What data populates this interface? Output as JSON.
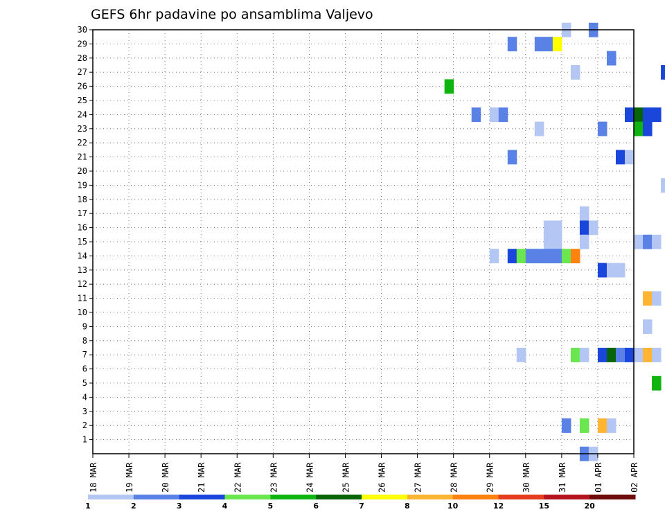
{
  "chart_data": {
    "type": "heatmap",
    "title": "GEFS 6hr padavine po ansamblima Valjevo",
    "x_ticks": [
      "18 MAR",
      "19 MAR",
      "20 MAR",
      "21 MAR",
      "22 MAR",
      "23 MAR",
      "24 MAR",
      "25 MAR",
      "26 MAR",
      "27 MAR",
      "28 MAR",
      "29 MAR",
      "30 MAR",
      "31 MAR",
      "01 APR",
      "02 APR"
    ],
    "y_ticks": [
      "1",
      "2",
      "3",
      "4",
      "5",
      "6",
      "7",
      "8",
      "9",
      "10",
      "11",
      "12",
      "13",
      "14",
      "15",
      "16",
      "17",
      "18",
      "19",
      "20",
      "21",
      "22",
      "23",
      "24",
      "25",
      "26",
      "27",
      "28",
      "29",
      "30"
    ],
    "xlim": [
      "18 MAR 00Z",
      "02 APR 00Z"
    ],
    "ylim": [
      0,
      30
    ],
    "grid": true,
    "colorbar": {
      "labels": [
        "1",
        "2",
        "3",
        "4",
        "5",
        "6",
        "7",
        "8",
        "10",
        "12",
        "15",
        "20"
      ],
      "colors": [
        "#b4c6f4",
        "#5a82e6",
        "#1a46dc",
        "#6ae64e",
        "#10b410",
        "#086408",
        "#ffff00",
        "#ffb432",
        "#ff8210",
        "#e63c1e",
        "#b4141e",
        "#6e0a0a"
      ]
    },
    "cells": [
      {
        "x": "27 MAR 18Z",
        "y": 26,
        "v": 5
      },
      {
        "x": "28 MAR 12Z",
        "y": 24,
        "v": 2
      },
      {
        "x": "29 MAR 00Z",
        "y": 24,
        "v": 1
      },
      {
        "x": "29 MAR 06Z",
        "y": 24,
        "v": 2
      },
      {
        "x": "29 MAR 00Z",
        "y": 14,
        "v": 1
      },
      {
        "x": "29 MAR 12Z",
        "y": 29,
        "v": 2
      },
      {
        "x": "29 MAR 12Z",
        "y": 21,
        "v": 2
      },
      {
        "x": "29 MAR 12Z",
        "y": 14,
        "v": 3
      },
      {
        "x": "29 MAR 18Z",
        "y": 14,
        "v": 4
      },
      {
        "x": "29 MAR 18Z",
        "y": 7,
        "v": 1
      },
      {
        "x": "30 MAR 00Z",
        "y": 14,
        "v": 2
      },
      {
        "x": "30 MAR 06Z",
        "y": 29,
        "v": 2
      },
      {
        "x": "30 MAR 06Z",
        "y": 23,
        "v": 1
      },
      {
        "x": "30 MAR 06Z",
        "y": 14,
        "v": 2
      },
      {
        "x": "30 MAR 12Z",
        "y": 29,
        "v": 2
      },
      {
        "x": "30 MAR 12Z",
        "y": 16,
        "v": 1
      },
      {
        "x": "30 MAR 12Z",
        "y": 15,
        "v": 1
      },
      {
        "x": "30 MAR 12Z",
        "y": 14,
        "v": 2
      },
      {
        "x": "30 MAR 18Z",
        "y": 29,
        "v": 7
      },
      {
        "x": "30 MAR 18Z",
        "y": 16,
        "v": 1
      },
      {
        "x": "30 MAR 18Z",
        "y": 15,
        "v": 1
      },
      {
        "x": "30 MAR 18Z",
        "y": 14,
        "v": 2
      },
      {
        "x": "31 MAR 00Z",
        "y": 30,
        "v": 1
      },
      {
        "x": "31 MAR 00Z",
        "y": 14,
        "v": 4
      },
      {
        "x": "31 MAR 00Z",
        "y": 2,
        "v": 2
      },
      {
        "x": "31 MAR 06Z",
        "y": 27,
        "v": 1
      },
      {
        "x": "31 MAR 06Z",
        "y": 14,
        "v": 9
      },
      {
        "x": "31 MAR 06Z",
        "y": 7,
        "v": 4
      },
      {
        "x": "31 MAR 12Z",
        "y": 17,
        "v": 1
      },
      {
        "x": "31 MAR 12Z",
        "y": 16,
        "v": 3
      },
      {
        "x": "31 MAR 12Z",
        "y": 15,
        "v": 1
      },
      {
        "x": "31 MAR 12Z",
        "y": 7,
        "v": 1
      },
      {
        "x": "31 MAR 12Z",
        "y": 2,
        "v": 4
      },
      {
        "x": "31 MAR 12Z",
        "y": 0,
        "v": 2
      },
      {
        "x": "31 MAR 18Z",
        "y": 30,
        "v": 2
      },
      {
        "x": "31 MAR 18Z",
        "y": 16,
        "v": 1
      },
      {
        "x": "31 MAR 18Z",
        "y": 0,
        "v": 1
      },
      {
        "x": "01 APR 00Z",
        "y": 23,
        "v": 2
      },
      {
        "x": "01 APR 00Z",
        "y": 13,
        "v": 3
      },
      {
        "x": "01 APR 00Z",
        "y": 7,
        "v": 3
      },
      {
        "x": "01 APR 00Z",
        "y": 2,
        "v": 8
      },
      {
        "x": "01 APR 06Z",
        "y": 28,
        "v": 2
      },
      {
        "x": "01 APR 06Z",
        "y": 13,
        "v": 1
      },
      {
        "x": "01 APR 06Z",
        "y": 7,
        "v": 6
      },
      {
        "x": "01 APR 06Z",
        "y": 2,
        "v": 1
      },
      {
        "x": "01 APR 12Z",
        "y": 21,
        "v": 3
      },
      {
        "x": "01 APR 12Z",
        "y": 13,
        "v": 1
      },
      {
        "x": "01 APR 12Z",
        "y": 7,
        "v": 2
      },
      {
        "x": "01 APR 18Z",
        "y": 24,
        "v": 3
      },
      {
        "x": "01 APR 18Z",
        "y": 21,
        "v": 1
      },
      {
        "x": "01 APR 18Z",
        "y": 7,
        "v": 3
      },
      {
        "x": "02 APR 00Z",
        "y": 24,
        "v": 6
      },
      {
        "x": "02 APR 00Z",
        "y": 23,
        "v": 5
      },
      {
        "x": "02 APR 00Z",
        "y": 15,
        "v": 1
      },
      {
        "x": "02 APR 00Z",
        "y": 7,
        "v": 1
      },
      {
        "x": "02 APR 06Z",
        "y": 24,
        "v": 3
      },
      {
        "x": "02 APR 06Z",
        "y": 23,
        "v": 3
      },
      {
        "x": "02 APR 06Z",
        "y": 15,
        "v": 2
      },
      {
        "x": "02 APR 06Z",
        "y": 11,
        "v": 8
      },
      {
        "x": "02 APR 06Z",
        "y": 9,
        "v": 1
      },
      {
        "x": "02 APR 06Z",
        "y": 7,
        "v": 8
      },
      {
        "x": "02 APR 12Z",
        "y": 24,
        "v": 3
      },
      {
        "x": "02 APR 12Z",
        "y": 15,
        "v": 1
      },
      {
        "x": "02 APR 12Z",
        "y": 11,
        "v": 1
      },
      {
        "x": "02 APR 12Z",
        "y": 7,
        "v": 1
      },
      {
        "x": "02 APR 12Z",
        "y": 5,
        "v": 5
      },
      {
        "x": "02 APR 18Z",
        "y": 27,
        "v": 3
      },
      {
        "x": "02 APR 18Z",
        "y": 19,
        "v": 1
      }
    ]
  }
}
